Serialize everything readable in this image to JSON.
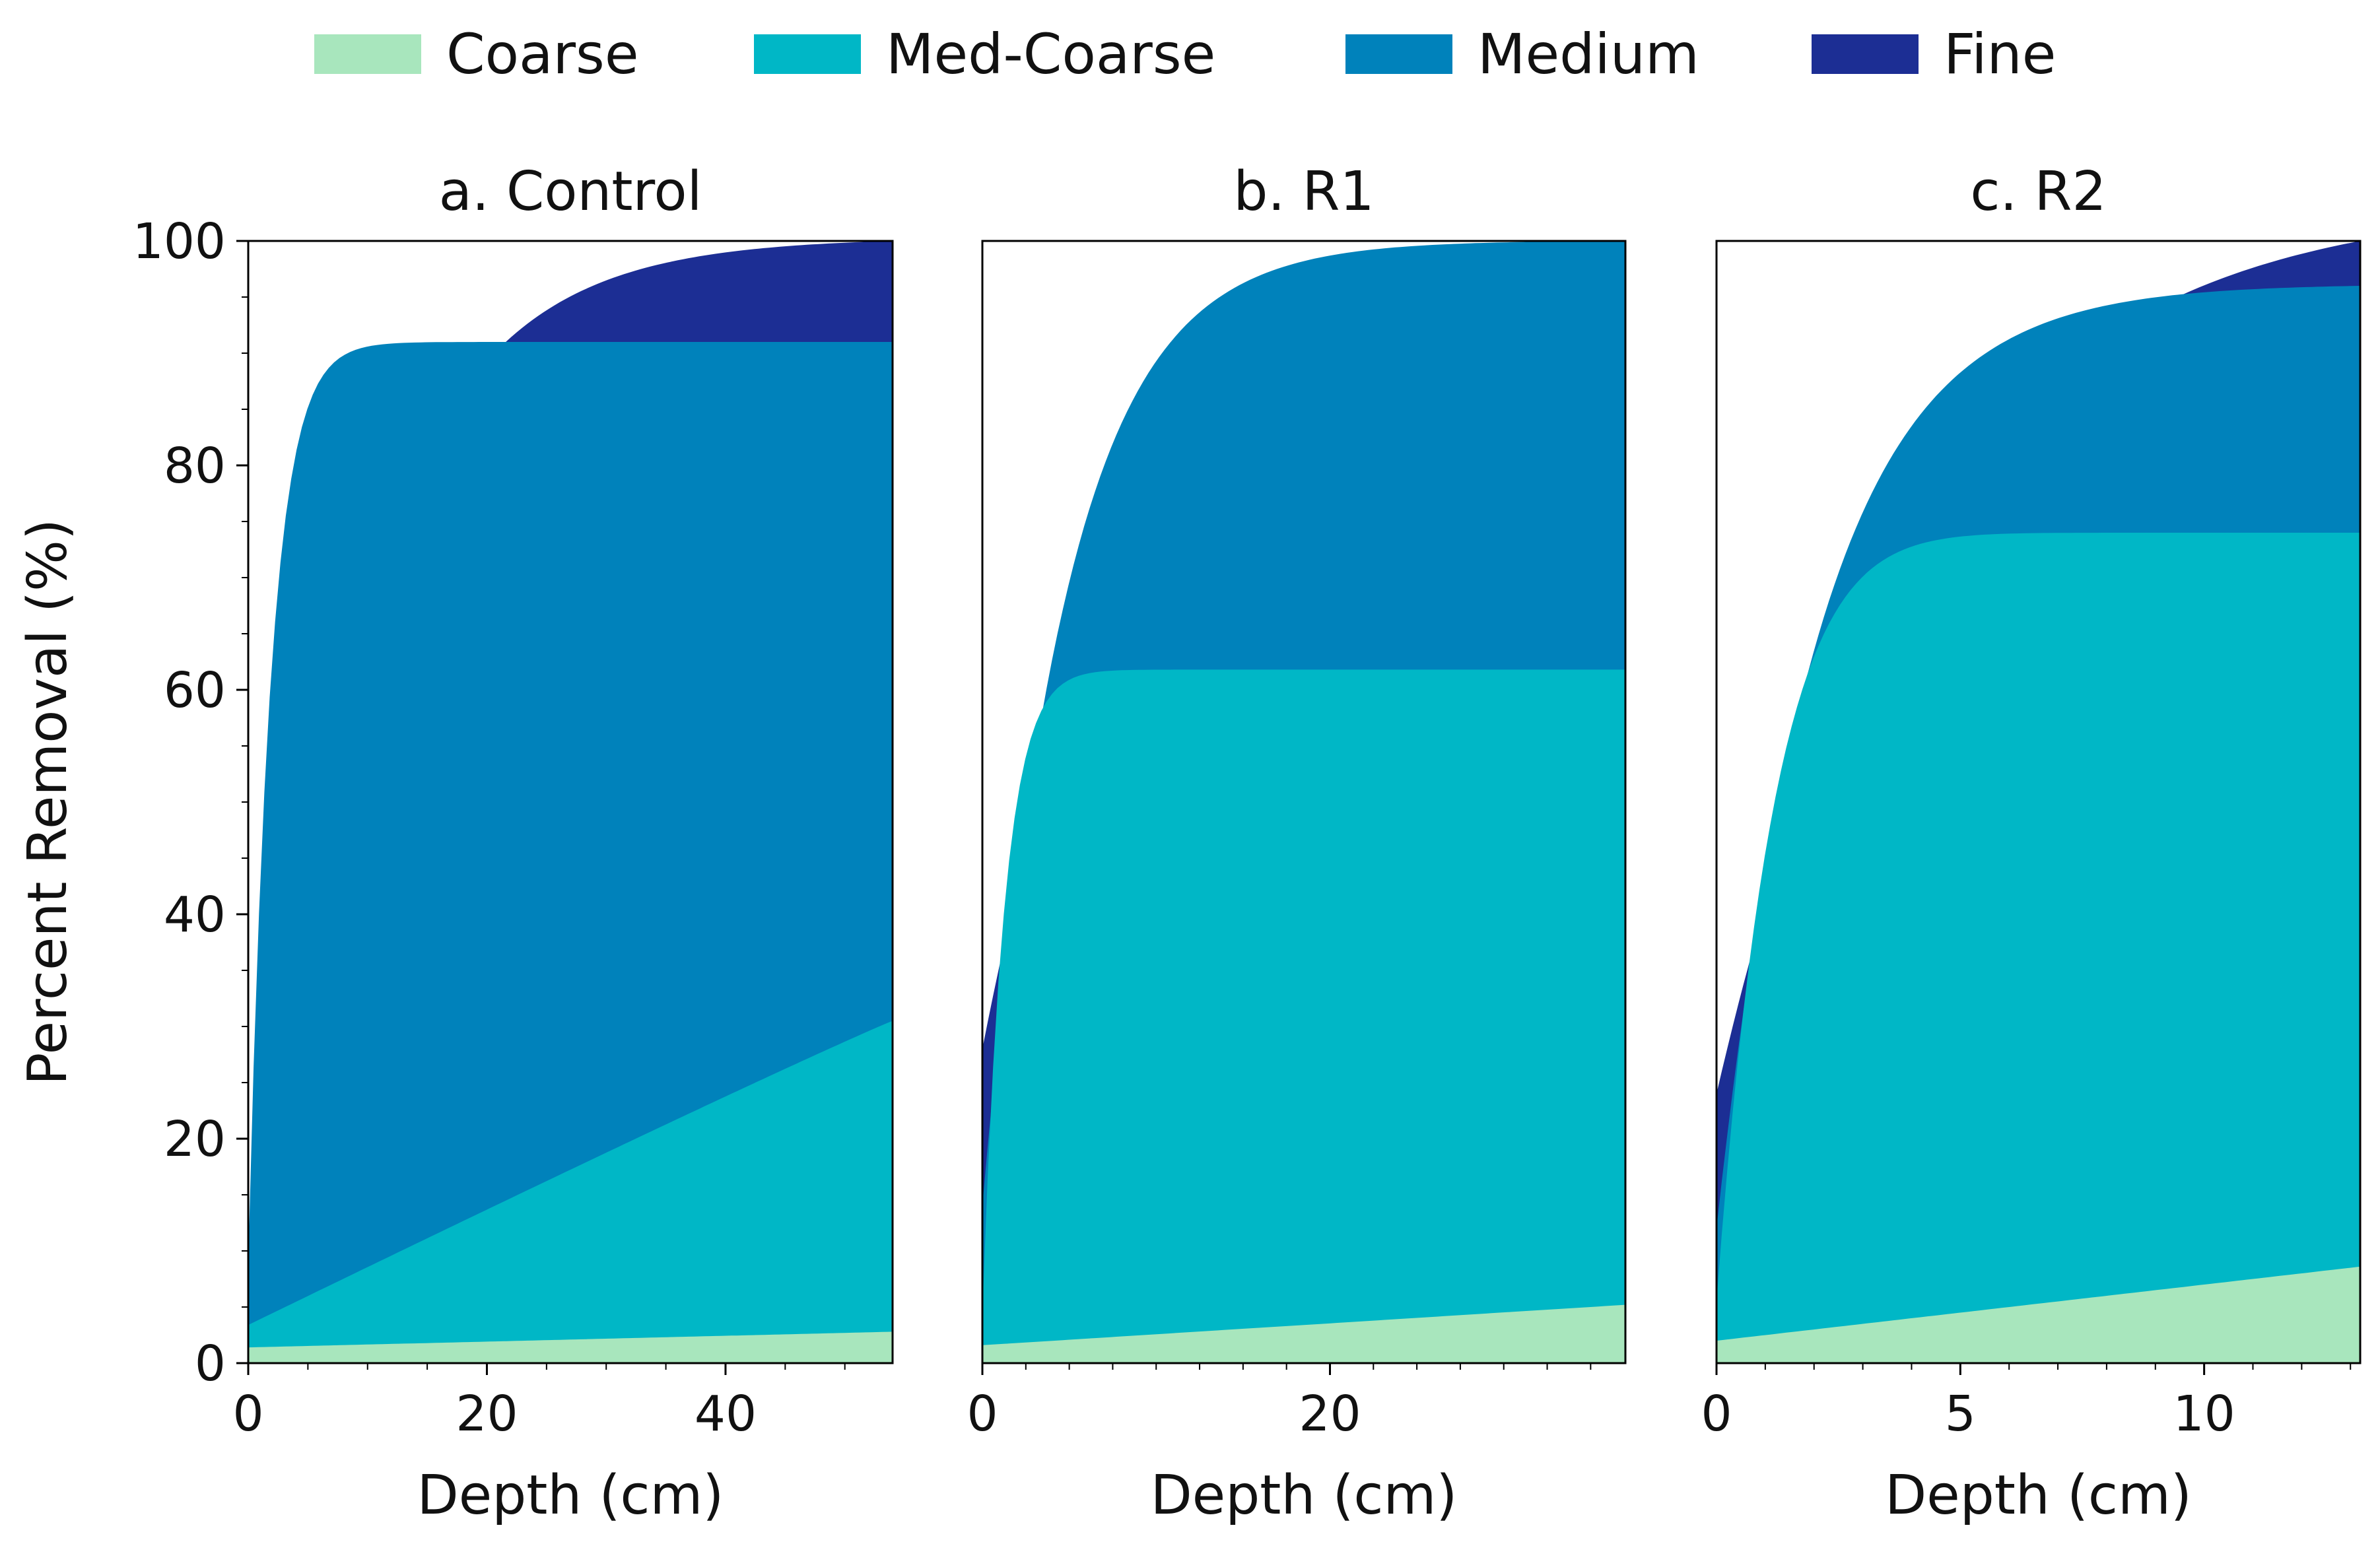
{
  "chart_data": {
    "type": "area",
    "stacked": true,
    "ylabel": "Percent Removal (%)",
    "ylim": [
      0,
      100
    ],
    "yticks": [
      0,
      20,
      40,
      60,
      80,
      100
    ],
    "legend_position": "top-center",
    "legend": [
      {
        "name": "Coarse",
        "color": "#a8e6bd"
      },
      {
        "name": "Med-Coarse",
        "color": "#00b7c6"
      },
      {
        "name": "Medium",
        "color": "#0082bb"
      },
      {
        "name": "Fine",
        "color": "#1c2e94"
      }
    ],
    "panels": [
      {
        "title": "a. Control",
        "xlabel": "Depth (cm)",
        "xlim": [
          0,
          54
        ],
        "xticks": [
          0,
          20,
          40
        ],
        "series": [
          {
            "name": "Coarse",
            "x": [
              0,
              54
            ],
            "y": [
              1.4,
              2.8
            ]
          },
          {
            "name": "Med-Coarse",
            "x": [
              0,
              54
            ],
            "y": [
              3.4,
              30.5
            ]
          },
          {
            "name": "Medium",
            "x": [
              0,
              54
            ],
            "y": [
              9.0,
              91.0
            ]
          },
          {
            "name": "Fine",
            "x": [
              0,
              54
            ],
            "y": [
              9.0,
              100.0
            ]
          }
        ]
      },
      {
        "title": "b. R1",
        "xlabel": "Depth (cm)",
        "xlim": [
          0,
          37
        ],
        "xticks": [
          0,
          20
        ],
        "series": [
          {
            "name": "Coarse",
            "x": [
              0,
              37
            ],
            "y": [
              1.6,
              5.2
            ]
          },
          {
            "name": "Med-Coarse",
            "x": [
              0,
              37
            ],
            "y": [
              4.5,
              61.8
            ]
          },
          {
            "name": "Medium",
            "x": [
              0,
              37
            ],
            "y": [
              14.0,
              100.0
            ]
          },
          {
            "name": "Fine",
            "x": [
              0,
              37
            ],
            "y": [
              28.0,
              100.0
            ]
          }
        ]
      },
      {
        "title": "c. R2",
        "xlabel": "Depth (cm)",
        "xlim": [
          0,
          13.2
        ],
        "xticks": [
          0,
          5,
          10
        ],
        "series": [
          {
            "name": "Coarse",
            "x": [
              0,
              13.2
            ],
            "y": [
              2.0,
              8.6
            ]
          },
          {
            "name": "Med-Coarse",
            "x": [
              0,
              13.2
            ],
            "y": [
              5.5,
              74.0
            ]
          },
          {
            "name": "Medium",
            "x": [
              0,
              13.2
            ],
            "y": [
              12.0,
              96.0
            ]
          },
          {
            "name": "Fine",
            "x": [
              0,
              13.2
            ],
            "y": [
              24.0,
              100.0
            ]
          }
        ]
      }
    ]
  }
}
